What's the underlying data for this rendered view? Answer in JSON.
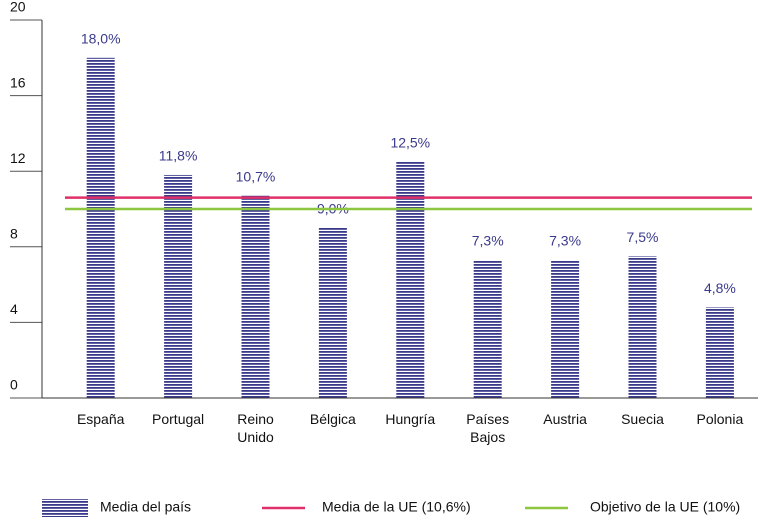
{
  "chart_data": {
    "type": "bar",
    "categories": [
      "España",
      "Portugal",
      "Reino\nUnido",
      "Bélgica",
      "Hungría",
      "Países\nBajos",
      "Austria",
      "Suecia",
      "Polonia"
    ],
    "series": [
      {
        "name": "Media del país",
        "color": "#3a3a8c",
        "values": [
          18.0,
          11.8,
          10.7,
          9.0,
          12.5,
          7.3,
          7.3,
          7.5,
          4.8
        ],
        "value_labels": [
          "18,0%",
          "11,8%",
          "10,7%",
          "9,0%",
          "12,5%",
          "7,3%",
          "7,3%",
          "7,5%",
          "4,8%"
        ]
      }
    ],
    "reference_lines": [
      {
        "name": "Media de la UE (10,6%)",
        "value": 10.6,
        "color": "#e0306a"
      },
      {
        "name": "Objetivo de la UE (10%)",
        "value": 10,
        "color": "#8dc63f"
      }
    ],
    "ylim": [
      0,
      20
    ],
    "yticks": [
      0,
      4,
      8,
      12,
      16,
      20
    ]
  }
}
